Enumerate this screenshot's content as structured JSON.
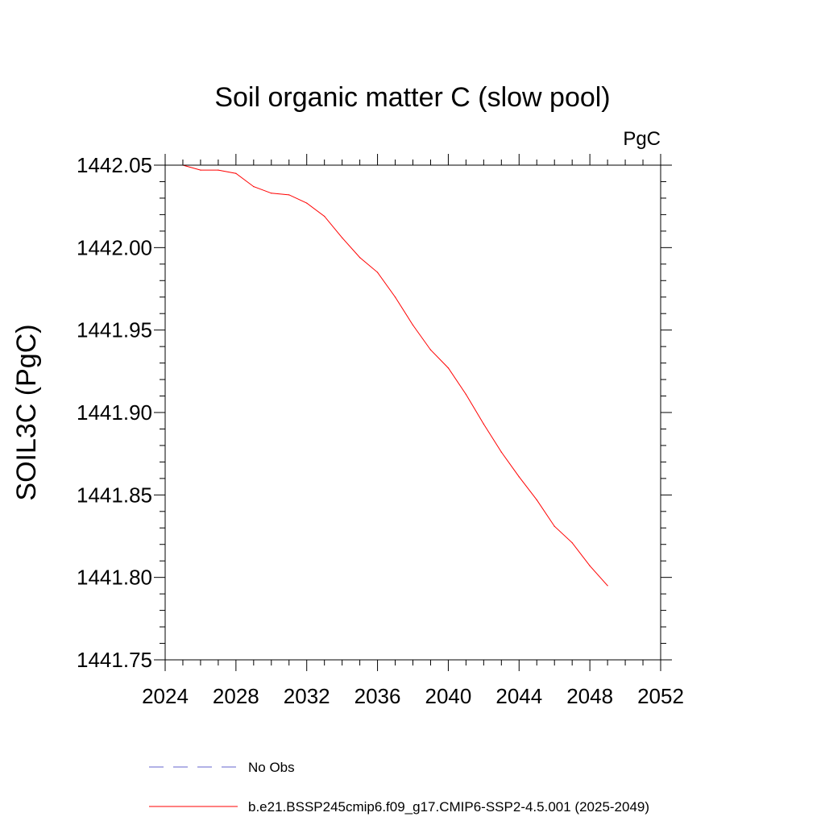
{
  "chart_data": {
    "type": "line",
    "title": "Soil organic matter C (slow pool)",
    "units": "PgC",
    "ylabel": "SOIL3C  (PgC)",
    "xlabel": "",
    "xlim": [
      2024,
      2052
    ],
    "ylim": [
      1441.75,
      1442.05
    ],
    "xticks": [
      2024,
      2028,
      2032,
      2036,
      2040,
      2044,
      2048,
      2052
    ],
    "xtick_labels": [
      "2024",
      "2028",
      "2032",
      "2036",
      "2040",
      "2044",
      "2048",
      "2052"
    ],
    "yticks": [
      1441.75,
      1441.8,
      1441.85,
      1441.9,
      1441.95,
      1442.0,
      1442.05
    ],
    "ytick_labels": [
      "1441.75",
      "1441.80",
      "1441.85",
      "1441.90",
      "1441.95",
      "1442.00",
      "1442.05"
    ],
    "grid": false,
    "legend_position": "bottom",
    "series": [
      {
        "name": "b.e21.BSSP245cmip6.f09_g17.CMIP6-SSP2-4.5.001 (2025-2049)",
        "color": "#ff0000",
        "style": "solid",
        "x": [
          2025,
          2026,
          2027,
          2028,
          2029,
          2030,
          2031,
          2032,
          2033,
          2034,
          2035,
          2036,
          2037,
          2038,
          2039,
          2040,
          2041,
          2042,
          2043,
          2044,
          2045,
          2046,
          2047,
          2048,
          2049
        ],
        "y": [
          1442.05,
          1442.047,
          1442.047,
          1442.045,
          1442.037,
          1442.033,
          1442.032,
          1442.027,
          1442.019,
          1442.006,
          1441.994,
          1441.985,
          1441.97,
          1441.953,
          1441.938,
          1441.927,
          1441.911,
          1441.893,
          1441.876,
          1441.861,
          1441.847,
          1441.831,
          1441.821,
          1441.807,
          1441.795
        ]
      }
    ],
    "legend": [
      {
        "label": "No Obs",
        "color": "#6666cc",
        "style": "dashed"
      },
      {
        "label": "b.e21.BSSP245cmip6.f09_g17.CMIP6-SSP2-4.5.001 (2025-2049)",
        "color": "#ff0000",
        "style": "solid"
      }
    ]
  }
}
